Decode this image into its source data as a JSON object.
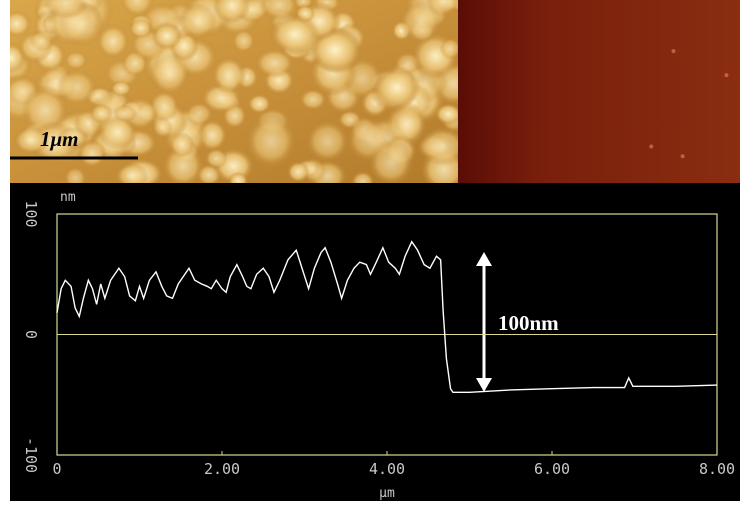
{
  "chart_data": {
    "type": "line",
    "scale_bar_label": "1μm",
    "annotation": "100nm",
    "x_unit": "μm",
    "y_unit": "nm",
    "x": [
      0,
      0.05,
      0.1,
      0.17,
      0.22,
      0.27,
      0.32,
      0.38,
      0.43,
      0.48,
      0.53,
      0.58,
      0.65,
      0.75,
      0.82,
      0.88,
      0.95,
      1.0,
      1.05,
      1.12,
      1.2,
      1.27,
      1.33,
      1.4,
      1.47,
      1.55,
      1.6,
      1.67,
      1.75,
      1.82,
      1.87,
      1.93,
      2.0,
      2.05,
      2.1,
      2.18,
      2.25,
      2.3,
      2.35,
      2.42,
      2.5,
      2.57,
      2.63,
      2.7,
      2.8,
      2.9,
      2.97,
      3.05,
      3.12,
      3.2,
      3.25,
      3.32,
      3.4,
      3.45,
      3.52,
      3.6,
      3.67,
      3.75,
      3.8,
      3.87,
      3.95,
      4.02,
      4.1,
      4.15,
      4.22,
      4.3,
      4.37,
      4.45,
      4.52,
      4.6,
      4.65,
      4.68,
      4.72,
      4.77,
      4.8,
      5.0,
      5.5,
      6.0,
      6.5,
      6.88,
      6.93,
      6.98,
      7.5,
      8.0
    ],
    "values": [
      18,
      38,
      45,
      40,
      22,
      15,
      30,
      45,
      38,
      25,
      42,
      30,
      45,
      55,
      48,
      32,
      28,
      40,
      30,
      45,
      52,
      40,
      32,
      30,
      42,
      50,
      55,
      45,
      42,
      40,
      38,
      45,
      38,
      35,
      48,
      58,
      48,
      40,
      38,
      50,
      55,
      48,
      35,
      45,
      62,
      70,
      55,
      38,
      55,
      68,
      72,
      60,
      42,
      30,
      45,
      55,
      60,
      58,
      50,
      60,
      72,
      60,
      55,
      50,
      65,
      77,
      70,
      58,
      55,
      65,
      62,
      20,
      -20,
      -45,
      -48,
      -48,
      -46,
      -45,
      -44,
      -44,
      -36,
      -43,
      -43,
      -42
    ],
    "color": "#ffffff",
    "xlim": [
      0,
      8
    ],
    "ylim": [
      -100,
      100
    ],
    "xticks": [
      0,
      {
        "value": 2,
        "label": "2.00"
      },
      {
        "value": 4,
        "label": "4.00"
      },
      {
        "value": 6,
        "label": "6.00"
      },
      {
        "value": 8,
        "label": "8.00"
      }
    ],
    "yticks": [
      100,
      0,
      -100
    ],
    "grid": true
  }
}
